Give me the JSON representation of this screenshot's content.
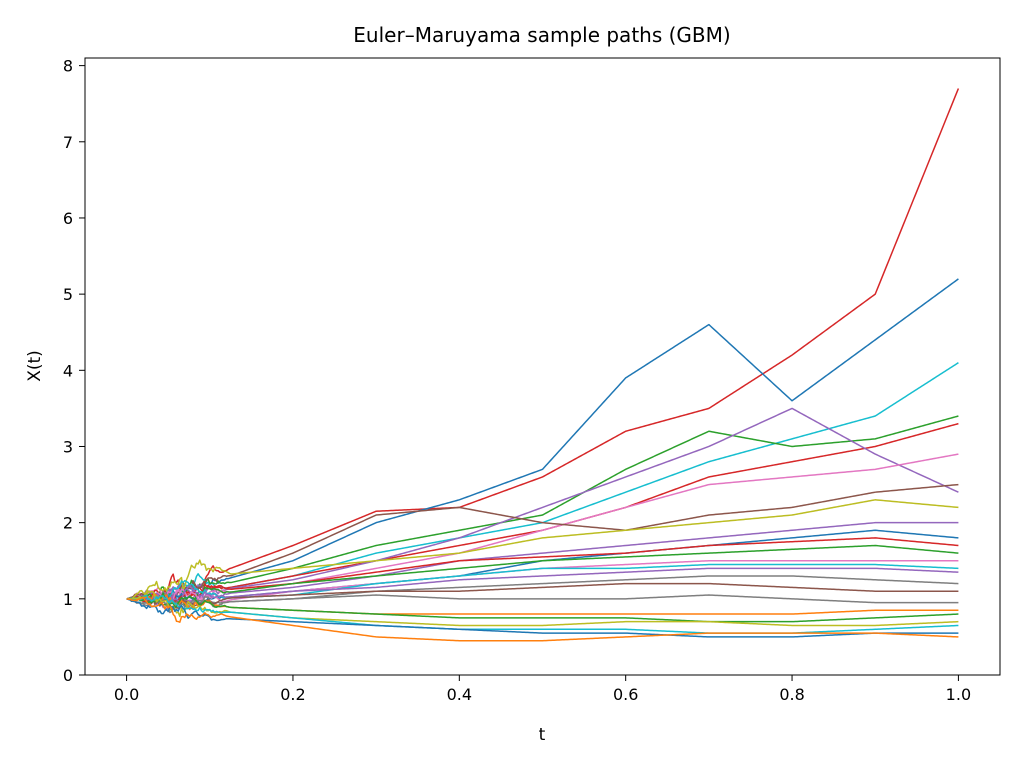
{
  "chart_data": {
    "type": "line",
    "title": "Euler–Maruyama sample paths (GBM)",
    "xlabel": "t",
    "ylabel": "X(t)",
    "xlim": [
      -0.05,
      1.05
    ],
    "ylim": [
      0,
      8.1
    ],
    "xticks": [
      0.0,
      0.2,
      0.4,
      0.6,
      0.8,
      1.0
    ],
    "xtick_labels": [
      "0.0",
      "0.2",
      "0.4",
      "0.6",
      "0.8",
      "1.0"
    ],
    "yticks": [
      0,
      1,
      2,
      3,
      4,
      5,
      6,
      7,
      8
    ],
    "ytick_labels": [
      "0",
      "1",
      "2",
      "3",
      "4",
      "5",
      "6",
      "7",
      "8"
    ],
    "grid": false,
    "legend": false,
    "x": [
      0.0,
      0.1,
      0.2,
      0.3,
      0.4,
      0.5,
      0.6,
      0.7,
      0.8,
      0.9,
      1.0
    ],
    "series": [
      {
        "color": "#d62728",
        "values": [
          1.0,
          1.3,
          1.7,
          2.15,
          2.2,
          2.6,
          3.2,
          3.5,
          4.2,
          5.0,
          7.7
        ]
      },
      {
        "color": "#1f77b4",
        "values": [
          1.0,
          1.2,
          1.5,
          2.0,
          2.3,
          2.7,
          3.9,
          4.6,
          3.6,
          4.4,
          5.2
        ]
      },
      {
        "color": "#17becf",
        "values": [
          1.0,
          1.1,
          1.3,
          1.6,
          1.8,
          2.0,
          2.4,
          2.8,
          3.1,
          3.4,
          4.1
        ]
      },
      {
        "color": "#2ca02c",
        "values": [
          1.0,
          1.15,
          1.4,
          1.7,
          1.9,
          2.1,
          2.7,
          3.2,
          3.0,
          3.1,
          3.4
        ]
      },
      {
        "color": "#d62728",
        "values": [
          1.0,
          1.1,
          1.3,
          1.5,
          1.7,
          1.9,
          2.2,
          2.6,
          2.8,
          3.0,
          3.3
        ]
      },
      {
        "color": "#9467bd",
        "values": [
          1.0,
          1.1,
          1.25,
          1.5,
          1.8,
          2.2,
          2.6,
          3.0,
          3.5,
          2.9,
          2.4
        ]
      },
      {
        "color": "#e377c2",
        "values": [
          1.0,
          1.05,
          1.2,
          1.4,
          1.6,
          1.9,
          2.2,
          2.5,
          2.6,
          2.7,
          2.9
        ]
      },
      {
        "color": "#8c564b",
        "values": [
          1.0,
          1.2,
          1.6,
          2.1,
          2.2,
          2.0,
          1.9,
          2.1,
          2.2,
          2.4,
          2.5
        ]
      },
      {
        "color": "#bcbd22",
        "values": [
          1.0,
          1.3,
          1.4,
          1.5,
          1.6,
          1.8,
          1.9,
          2.0,
          2.1,
          2.3,
          2.2
        ]
      },
      {
        "color": "#9467bd",
        "values": [
          1.0,
          1.05,
          1.15,
          1.3,
          1.5,
          1.6,
          1.7,
          1.8,
          1.9,
          2.0,
          2.0
        ]
      },
      {
        "color": "#1f77b4",
        "values": [
          1.0,
          1.0,
          1.1,
          1.2,
          1.3,
          1.5,
          1.6,
          1.7,
          1.8,
          1.9,
          1.8
        ]
      },
      {
        "color": "#d62728",
        "values": [
          1.0,
          1.1,
          1.2,
          1.35,
          1.5,
          1.55,
          1.6,
          1.7,
          1.75,
          1.8,
          1.7
        ]
      },
      {
        "color": "#2ca02c",
        "values": [
          1.0,
          1.05,
          1.2,
          1.3,
          1.4,
          1.5,
          1.55,
          1.6,
          1.65,
          1.7,
          1.6
        ]
      },
      {
        "color": "#e377c2",
        "values": [
          1.0,
          0.95,
          1.1,
          1.2,
          1.3,
          1.4,
          1.45,
          1.5,
          1.5,
          1.5,
          1.5
        ]
      },
      {
        "color": "#17becf",
        "values": [
          1.0,
          1.0,
          1.05,
          1.2,
          1.3,
          1.4,
          1.4,
          1.45,
          1.45,
          1.45,
          1.4
        ]
      },
      {
        "color": "#9467bd",
        "values": [
          1.0,
          1.0,
          1.1,
          1.15,
          1.25,
          1.3,
          1.35,
          1.4,
          1.4,
          1.4,
          1.35
        ]
      },
      {
        "color": "#7f7f7f",
        "values": [
          1.0,
          0.95,
          1.0,
          1.1,
          1.15,
          1.2,
          1.25,
          1.3,
          1.3,
          1.25,
          1.2
        ]
      },
      {
        "color": "#8c564b",
        "values": [
          1.0,
          1.0,
          1.05,
          1.1,
          1.1,
          1.15,
          1.2,
          1.2,
          1.15,
          1.1,
          1.1
        ]
      },
      {
        "color": "#7f7f7f",
        "values": [
          1.0,
          0.95,
          1.0,
          1.05,
          1.0,
          1.0,
          1.0,
          1.05,
          1.0,
          0.95,
          0.95
        ]
      },
      {
        "color": "#ff7f0e",
        "values": [
          1.0,
          0.9,
          0.85,
          0.8,
          0.8,
          0.8,
          0.8,
          0.8,
          0.8,
          0.85,
          0.85
        ]
      },
      {
        "color": "#2ca02c",
        "values": [
          1.0,
          0.9,
          0.85,
          0.8,
          0.75,
          0.75,
          0.75,
          0.7,
          0.7,
          0.75,
          0.8
        ]
      },
      {
        "color": "#bcbd22",
        "values": [
          1.0,
          0.85,
          0.75,
          0.7,
          0.65,
          0.65,
          0.7,
          0.7,
          0.65,
          0.65,
          0.7
        ]
      },
      {
        "color": "#17becf",
        "values": [
          1.0,
          0.85,
          0.75,
          0.65,
          0.6,
          0.6,
          0.6,
          0.55,
          0.55,
          0.6,
          0.65
        ]
      },
      {
        "color": "#1f77b4",
        "values": [
          1.0,
          0.75,
          0.7,
          0.65,
          0.6,
          0.55,
          0.55,
          0.5,
          0.5,
          0.55,
          0.55
        ]
      },
      {
        "color": "#ff7f0e",
        "values": [
          1.0,
          0.8,
          0.65,
          0.5,
          0.45,
          0.45,
          0.5,
          0.55,
          0.55,
          0.55,
          0.5
        ]
      }
    ]
  }
}
